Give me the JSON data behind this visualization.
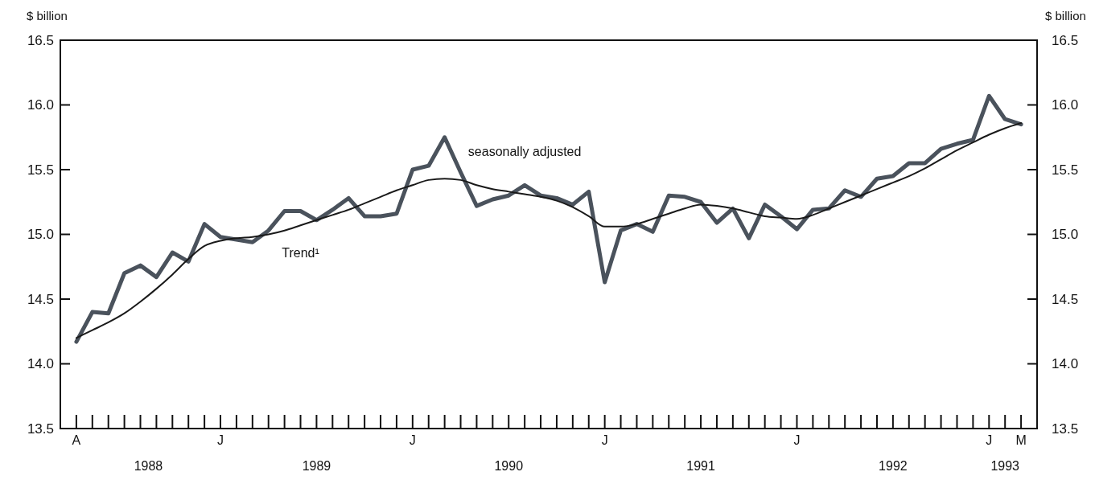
{
  "chart_data": {
    "type": "line",
    "ylabel": "$ billion",
    "y2label": "$ billion",
    "categories": [
      "A",
      null,
      null,
      null,
      null,
      null,
      null,
      null,
      null,
      "J",
      null,
      null,
      null,
      null,
      null,
      null,
      null,
      null,
      null,
      null,
      null,
      "J",
      null,
      null,
      null,
      null,
      null,
      null,
      null,
      null,
      null,
      null,
      null,
      "J",
      null,
      null,
      null,
      null,
      null,
      null,
      null,
      null,
      null,
      null,
      null,
      "J",
      null,
      null,
      null,
      null,
      null,
      null,
      null,
      null,
      null,
      null,
      null,
      "J",
      null,
      "M"
    ],
    "series": [
      {
        "name": "seasonally adjusted",
        "color": "#4a525c",
        "values": [
          14.17,
          14.4,
          14.39,
          14.7,
          14.76,
          14.67,
          14.86,
          14.79,
          15.08,
          14.98,
          14.96,
          14.94,
          15.03,
          15.18,
          15.18,
          15.11,
          15.19,
          15.28,
          15.14,
          15.14,
          15.16,
          15.5,
          15.53,
          15.75,
          15.48,
          15.22,
          15.27,
          15.3,
          15.38,
          15.3,
          15.28,
          15.23,
          15.33,
          14.63,
          15.03,
          15.08,
          15.02,
          15.3,
          15.29,
          15.25,
          15.09,
          15.2,
          14.97,
          15.23,
          15.14,
          15.04,
          15.19,
          15.2,
          15.34,
          15.29,
          15.43,
          15.45,
          15.55,
          15.55,
          15.66,
          15.7,
          15.73,
          16.07,
          15.89,
          15.85
        ]
      },
      {
        "name": "Trend¹",
        "color": "#1a1a1a",
        "values": [
          14.2,
          14.26,
          14.32,
          14.39,
          14.48,
          14.58,
          14.69,
          14.81,
          14.91,
          14.95,
          14.97,
          14.98,
          15.0,
          15.03,
          15.07,
          15.11,
          15.15,
          15.19,
          15.24,
          15.29,
          15.34,
          15.38,
          15.42,
          15.43,
          15.42,
          15.38,
          15.35,
          15.33,
          15.31,
          15.29,
          15.26,
          15.21,
          15.14,
          15.06,
          15.06,
          15.08,
          15.12,
          15.16,
          15.2,
          15.23,
          15.22,
          15.2,
          15.17,
          15.14,
          15.13,
          15.12,
          15.15,
          15.2,
          15.25,
          15.3,
          15.35,
          15.4,
          15.45,
          15.51,
          15.58,
          15.65,
          15.71,
          15.77,
          15.82,
          15.86
        ]
      }
    ],
    "ylim": [
      13.5,
      16.5
    ],
    "yticks": [
      13.5,
      {
        "value": 14.0,
        "label": "14.0"
      },
      14.5,
      {
        "value": 15.0,
        "label": "15.0"
      },
      15.5,
      {
        "value": 16.0,
        "label": "16.0"
      },
      16.5
    ],
    "y2lim": [
      13.5,
      16.5
    ],
    "y2ticks": [
      13.5,
      {
        "value": 14.0,
        "label": "14.0"
      },
      14.5,
      {
        "value": 15.0,
        "label": "15.0"
      },
      15.5,
      {
        "value": 16.0,
        "label": "16.0"
      },
      16.5
    ],
    "annotations": [
      "1988",
      "1989",
      "1990",
      "1991",
      "1992",
      "1993"
    ]
  }
}
